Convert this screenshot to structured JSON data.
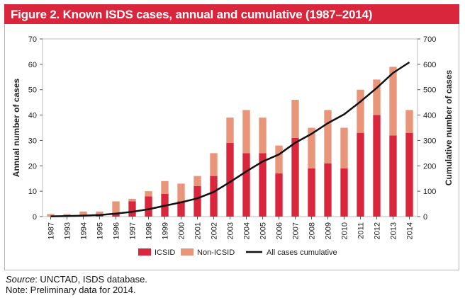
{
  "figure": {
    "title": "Figure 2. Known ISDS cases, annual and cumulative (1987–2014)"
  },
  "footer": {
    "source_label": "Source",
    "source_text": ": UNCTAD, ISDS database.",
    "note": "Note: Preliminary data for 2014."
  },
  "colors": {
    "title_bg": "#d9263c",
    "icsid": "#d9263c",
    "non_icsid": "#e9957a",
    "cumulative": "#111111"
  },
  "chart_data": {
    "type": "bar",
    "stacked": true,
    "categories": [
      "1987",
      "1993",
      "1994",
      "1995",
      "1996",
      "1997",
      "1998",
      "1999",
      "2000",
      "2001",
      "2002",
      "2003",
      "2004",
      "2005",
      "2006",
      "2007",
      "2008",
      "2009",
      "2010",
      "2011",
      "2012",
      "2013",
      "2014"
    ],
    "series": [
      {
        "name": "ICSID",
        "type": "bar",
        "axis": "left",
        "values": [
          0,
          0,
          0,
          1,
          1,
          6,
          8,
          9,
          6,
          12,
          16,
          29,
          25,
          25,
          17,
          31,
          19,
          21,
          19,
          33,
          40,
          32,
          33
        ]
      },
      {
        "name": "Non-ICSID",
        "type": "bar",
        "axis": "left",
        "values": [
          1,
          1,
          2,
          1,
          5,
          1,
          2,
          5,
          7,
          4,
          9,
          10,
          17,
          14,
          11,
          15,
          16,
          21,
          16,
          17,
          14,
          27,
          9
        ]
      },
      {
        "name": "All cases cumulative",
        "type": "line",
        "axis": "right",
        "values": [
          1,
          2,
          4,
          6,
          12,
          19,
          29,
          43,
          56,
          72,
          97,
          136,
          178,
          217,
          245,
          291,
          326,
          368,
          403,
          453,
          507,
          566,
          608
        ]
      }
    ],
    "ylabel": "Annual number of cases",
    "y2label": "Cumulative number of cases",
    "ylim": [
      0,
      70
    ],
    "y2lim": [
      0,
      700
    ],
    "yticks": [
      "0",
      "10",
      "20",
      "30",
      "40",
      "50",
      "60",
      "70"
    ],
    "y2ticks": [
      "0",
      "100",
      "200",
      "300",
      "400",
      "500",
      "600",
      "700"
    ],
    "grid": false,
    "legend_position": "bottom"
  }
}
